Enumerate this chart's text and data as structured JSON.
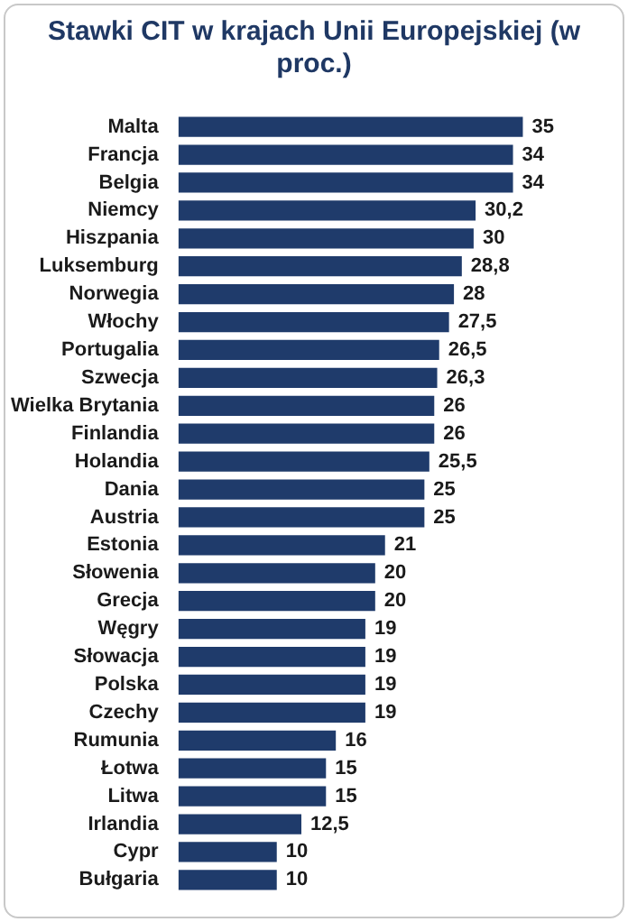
{
  "chart_data": {
    "type": "bar",
    "orientation": "horizontal",
    "title": "Stawki CIT w krajach Unii Europejskiej (w proc.)",
    "categories": [
      "Malta",
      "Francja",
      "Belgia",
      "Niemcy",
      "Hiszpania",
      "Luksemburg",
      "Norwegia",
      "Włochy",
      "Portugalia",
      "Szwecja",
      "Wielka Brytania",
      "Finlandia",
      "Holandia",
      "Dania",
      "Austria",
      "Estonia",
      "Słowenia",
      "Grecja",
      "Węgry",
      "Słowacja",
      "Polska",
      "Czechy",
      "Rumunia",
      "Łotwa",
      "Litwa",
      "Irlandia",
      "Cypr",
      "Bułgaria"
    ],
    "values": [
      35,
      34,
      34,
      30.2,
      30,
      28.8,
      28,
      27.5,
      26.5,
      26.3,
      26,
      26,
      25.5,
      25,
      25,
      21,
      20,
      20,
      19,
      19,
      19,
      19,
      16,
      15,
      15,
      12.5,
      10,
      10
    ],
    "value_labels": [
      "35",
      "34",
      "34",
      "30,2",
      "30",
      "28,8",
      "28",
      "27,5",
      "26,5",
      "26,3",
      "26",
      "26",
      "25,5",
      "25",
      "25",
      "21",
      "20",
      "20",
      "19",
      "19",
      "19",
      "19",
      "16",
      "15",
      "15",
      "12,5",
      "10",
      "10"
    ],
    "color": "#1f3b6b",
    "legend": false,
    "tick_labels": "y"
  }
}
